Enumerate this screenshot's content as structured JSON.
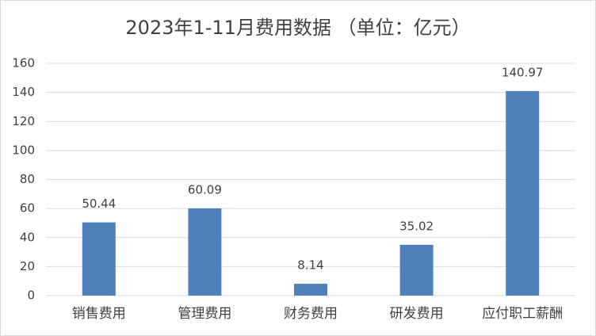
{
  "chart_data": {
    "type": "bar",
    "title": "2023年1-11月费用数据 （单位：亿元）",
    "categories": [
      "销售费用",
      "管理费用",
      "财务费用",
      "研发费用",
      "应付职工薪酬"
    ],
    "values": [
      50.44,
      60.09,
      8.14,
      35.02,
      140.97
    ],
    "color": "#4f81bd",
    "ylim": [
      0,
      160
    ],
    "yticks": [
      0,
      20,
      40,
      60,
      80,
      100,
      120,
      140,
      160
    ],
    "grid": true,
    "data_labels": true
  }
}
